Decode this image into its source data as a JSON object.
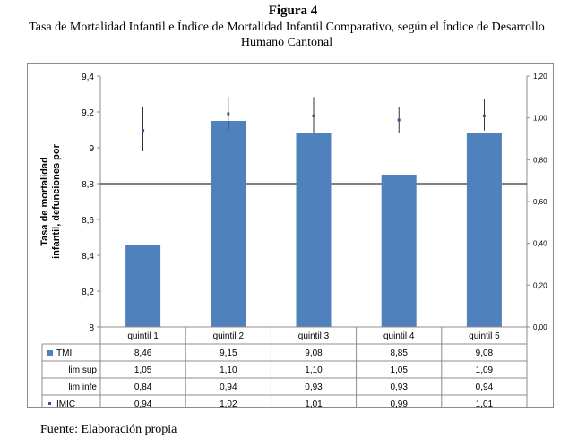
{
  "figure": {
    "title": "Figura 4",
    "subtitle": "Tasa de Mortalidad Infantil e Índice de Mortalidad Infantil Comparativo, según el Índice de Desarrollo Humano Cantonal",
    "source": "Fuente: Elaboración propia"
  },
  "chart_data": {
    "type": "bar",
    "categories": [
      "quintil 1",
      "quintil 2",
      "quintil 3",
      "quintil 4",
      "quintil 5"
    ],
    "ylabel": "Tasa de mortalidad infantil, defunciones por",
    "ylim": [
      8,
      9.4
    ],
    "yticks": [
      "9,4",
      "9,2",
      "9",
      "8,8",
      "8,6",
      "8,4",
      "8,2",
      "8"
    ],
    "y2lim": [
      0,
      1.2
    ],
    "y2ticks": [
      "1,20",
      "1,00",
      "0,80",
      "0,60",
      "0,40",
      "0,20",
      "0,00"
    ],
    "reference_line": 8.8,
    "series": [
      {
        "name": "TMI",
        "axis": "left",
        "kind": "bar",
        "color": "#4f81bd",
        "values": [
          8.46,
          9.15,
          9.08,
          8.85,
          9.08
        ]
      },
      {
        "name": "lim sup",
        "axis": "right",
        "kind": "errorbar-high",
        "values": [
          1.05,
          1.1,
          1.1,
          1.05,
          1.09
        ]
      },
      {
        "name": "lim infe",
        "axis": "right",
        "kind": "errorbar-low",
        "values": [
          0.84,
          0.94,
          0.93,
          0.93,
          0.94
        ]
      },
      {
        "name": "IMIC",
        "axis": "right",
        "kind": "point",
        "color": "#4f81bd",
        "values": [
          0.94,
          1.02,
          1.01,
          0.99,
          1.01
        ]
      }
    ],
    "table": {
      "rows": [
        {
          "key": "TMI",
          "label": "TMI",
          "marker": "square",
          "cells": [
            "8,46",
            "9,15",
            "9,08",
            "8,85",
            "9,08"
          ]
        },
        {
          "key": "lim sup",
          "label": "lim sup",
          "marker": "none",
          "cells": [
            "1,05",
            "1,10",
            "1,10",
            "1,05",
            "1,09"
          ]
        },
        {
          "key": "lim infe",
          "label": "lim infe",
          "marker": "none",
          "cells": [
            "0,84",
            "0,94",
            "0,93",
            "0,93",
            "0,94"
          ]
        },
        {
          "key": "IMIC",
          "label": "IMIC",
          "marker": "dot",
          "cells": [
            "0,94",
            "1,02",
            "1,01",
            "0,99",
            "1,01"
          ]
        }
      ]
    },
    "grid": false,
    "legend": "data-table"
  }
}
